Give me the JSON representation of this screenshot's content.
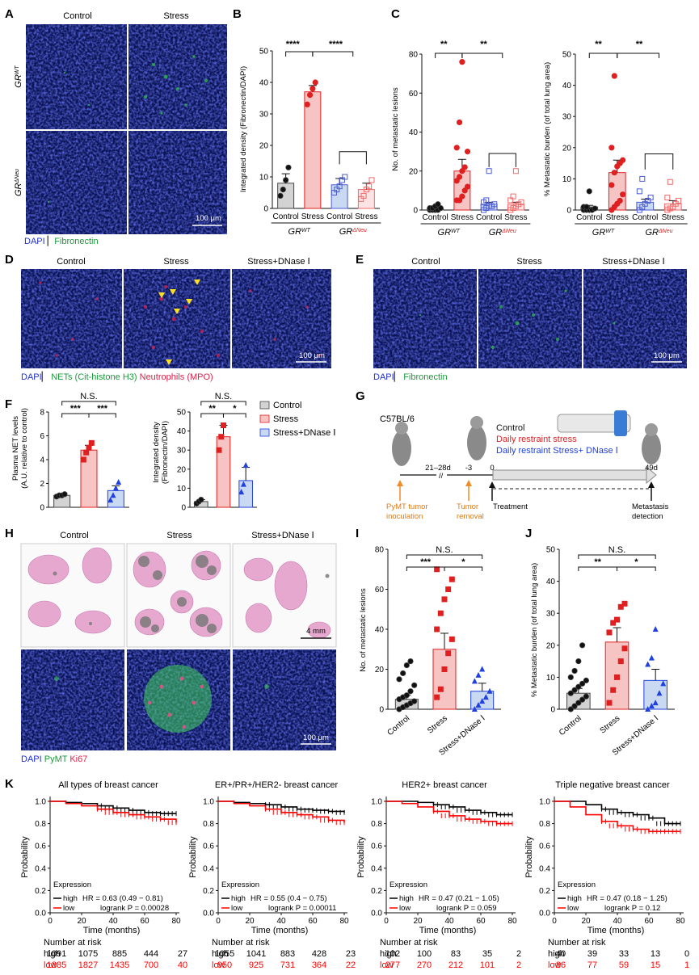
{
  "colors": {
    "control": "#444444",
    "stress": "#e02020",
    "dnase": "#2040e0",
    "control_fill": "#d3d3d3",
    "stress_fill": "#f7c4c4",
    "dnase_fill": "#c9d9f2",
    "gr_neu_control": "#4a5bd6",
    "gr_neu_stress": "#f06a6a",
    "km_high": "#000000",
    "km_low": "#ff0000",
    "micro_bg": "#0a0a3a",
    "he_bg": "#fafafa"
  },
  "panelA": {
    "letter": "A",
    "cols": [
      "Control",
      "Stress"
    ],
    "rows": [
      {
        "base": "GR",
        "sup": "WT"
      },
      {
        "base": "GR",
        "sup": "ΔNeu"
      }
    ],
    "scale": "100 μm",
    "legend_dapi": "DAPI",
    "legend_stain": "Fibronectin"
  },
  "panelB": {
    "letter": "B",
    "ylabel": "Integrated density (Fibronectin/DAPI)",
    "ylim": [
      0,
      50
    ],
    "yticks": [
      "0",
      "10",
      "20",
      "30",
      "40",
      "50"
    ],
    "xticks": [
      "Control",
      "Stress",
      "Control",
      "Stress"
    ],
    "groups": [
      {
        "base": "GR",
        "sup": "WT"
      },
      {
        "base": "GR",
        "sup": "ΔNeu"
      }
    ],
    "sig": [
      "****",
      "****"
    ]
  },
  "panelC": {
    "letter": "C",
    "sig": [
      "**",
      "**"
    ],
    "xticks": [
      "Control",
      "Stress",
      "Control",
      "Stress"
    ],
    "groups": [
      {
        "base": "GR",
        "sup": "WT"
      },
      {
        "base": "GR",
        "sup": "ΔNeu"
      }
    ],
    "left": {
      "ylabel": "No. of metastatic lesions",
      "yticks": [
        "0",
        "20",
        "40",
        "60",
        "80"
      ]
    },
    "right": {
      "ylabel": "% Metastatic burden (of total lung area)",
      "yticks": [
        "0",
        "10",
        "20",
        "30",
        "40",
        "50"
      ]
    }
  },
  "panelD": {
    "letter": "D",
    "cols": [
      "Control",
      "Stress",
      "Stress+DNase Ⅰ"
    ],
    "scale": "100 μm",
    "legend_dapi": "DAPI",
    "legend_nets": "NETs (Cit-histone H3)",
    "legend_neut": "Neutrophils (MPO)"
  },
  "panelE": {
    "letter": "E",
    "cols": [
      "Control",
      "Stress",
      "Stress+DNase Ⅰ"
    ],
    "scale": "100 μm",
    "legend_dapi": "DAPI",
    "legend_stain": "Fibronectin"
  },
  "panelF": {
    "letter": "F",
    "left": {
      "ylabel1": "Plasma NET levels",
      "ylabel2": "(A.U. relative to control)",
      "yticks": [
        "0",
        "2",
        "4",
        "6",
        "8"
      ],
      "sig_top": "N.S.",
      "sig": [
        "***",
        "***"
      ]
    },
    "right": {
      "ylabel1": "Integrated density",
      "ylabel2": "(Fibronectin/DAPI)",
      "yticks": [
        "0",
        "10",
        "20",
        "30",
        "40",
        "50"
      ],
      "sig_top": "N.S.",
      "sig": [
        "**",
        "*"
      ]
    },
    "legend": [
      "Control",
      "Stress",
      "Stress+DNase Ⅰ"
    ]
  },
  "panelG": {
    "letter": "G",
    "strain": "C57BL/6",
    "arms": [
      "Control",
      "Daily restraint stress",
      "Daily restraint Stress+ DNase Ⅰ"
    ],
    "timeline": [
      "21–28d",
      "-3",
      "0",
      "49d"
    ],
    "events": [
      "PyMT tumor",
      "inoculation",
      "Tumor",
      "removal",
      "Treatment",
      "Metastasis",
      "detection"
    ]
  },
  "panelH": {
    "letter": "H",
    "cols": [
      "Control",
      "Stress",
      "Stress+DNase Ⅰ"
    ],
    "scale_top": "4 mm",
    "scale_bottom": "100 μm",
    "legend_dapi": "DAPI",
    "legend_pymt": "PyMT",
    "legend_ki67": "Ki67"
  },
  "panelI": {
    "letter": "I",
    "ylabel": "No. of metastatic lesions",
    "yticks": [
      "0",
      "20",
      "40",
      "60",
      "80"
    ],
    "xticks": [
      "Control",
      "Stress",
      "Stress+DNase Ⅰ"
    ],
    "sig_top": "N.S.",
    "sig": [
      "***",
      "*"
    ]
  },
  "panelJ": {
    "letter": "J",
    "ylabel": "% Metastatic burden (of total lung area)",
    "yticks": [
      "0",
      "10",
      "20",
      "30",
      "40",
      "50"
    ],
    "xticks": [
      "Control",
      "Stress",
      "Stress+DNase Ⅰ"
    ],
    "sig_top": "N.S.",
    "sig": [
      "**",
      "*"
    ]
  },
  "panelK": {
    "letter": "K",
    "xlabel": "Time (months)",
    "ylabel": "Probability",
    "xticks": [
      "0",
      "20",
      "40",
      "60",
      "80"
    ],
    "yticks": [
      "0.0",
      "0.2",
      "0.4",
      "0.6",
      "0.8",
      "1.0"
    ],
    "risk_title": "Number at risk",
    "expression": "Expression",
    "high": "high",
    "low": "low",
    "plots": [
      {
        "title": "All types of breast cancer",
        "hr": "HR = 0.63 (0.49 − 0.81)",
        "p": "logrank P = 0.00028",
        "risk_high": [
          "1091",
          "1075",
          "885",
          "444",
          "27"
        ],
        "risk_low": [
          "1885",
          "1827",
          "1435",
          "700",
          "40"
        ]
      },
      {
        "title": "ER+/PR+/HER2- breast cancer",
        "hr": "HR = 0.55 (0.4 − 0.75)",
        "p": "logrank P = 0.00011",
        "risk_high": [
          "1055",
          "1041",
          "883",
          "428",
          "23"
        ],
        "risk_low": [
          "950",
          "925",
          "731",
          "364",
          "22"
        ]
      },
      {
        "title": "HER2+ breast cancer",
        "hr": "HR = 0.47 (0.21 − 1.05)",
        "p": "logrank P = 0.059",
        "risk_high": [
          "102",
          "100",
          "83",
          "35",
          "2"
        ],
        "risk_low": [
          "277",
          "270",
          "212",
          "101",
          "2"
        ]
      },
      {
        "title": "Triple negative breast cancer",
        "hr": "HR = 0.47 (0.18 − 1.25)",
        "p": "logrank P = 0.12",
        "risk_high": [
          "40",
          "39",
          "33",
          "13",
          "0"
        ],
        "risk_low": [
          "86",
          "77",
          "59",
          "15",
          "1"
        ]
      }
    ]
  },
  "chart_data": [
    {
      "type": "bar",
      "panel": "B",
      "categories": [
        "GRWT Control",
        "GRWT Stress",
        "GRΔNeu Control",
        "GRΔNeu Stress"
      ],
      "values": [
        8,
        37,
        7.5,
        6
      ],
      "errors": [
        3,
        2,
        2,
        2
      ],
      "points": [
        [
          4,
          6,
          9,
          13
        ],
        [
          33,
          36,
          38,
          40
        ],
        [
          5,
          6,
          7,
          9,
          10
        ],
        [
          3,
          4,
          6,
          7,
          9
        ]
      ],
      "ylim": [
        0,
        50
      ]
    },
    {
      "type": "bar",
      "panel": "C-left",
      "categories": [
        "GRWT Control",
        "GRWT Stress",
        "GRΔNeu Control",
        "GRΔNeu Stress"
      ],
      "values": [
        1,
        20,
        3,
        3
      ],
      "errors": [
        0.5,
        6,
        1,
        1
      ],
      "points": [
        [
          0,
          0,
          0,
          0,
          1,
          1,
          1,
          2,
          3
        ],
        [
          5,
          5,
          7,
          10,
          12,
          15,
          17,
          20,
          22,
          30,
          32,
          45,
          76
        ],
        [
          0,
          1,
          2,
          2,
          3,
          4,
          5,
          20
        ],
        [
          0,
          1,
          2,
          3,
          4,
          5,
          7,
          20
        ]
      ],
      "ylim": [
        0,
        80
      ]
    },
    {
      "type": "bar",
      "panel": "C-right",
      "categories": [
        "GRWT Control",
        "GRWT Stress",
        "GRΔNeu Control",
        "GRΔNeu Stress"
      ],
      "values": [
        1,
        12,
        2.5,
        2
      ],
      "errors": [
        0.5,
        4,
        1,
        1
      ],
      "points": [
        [
          0,
          0,
          0,
          0,
          0.5,
          1,
          1,
          6
        ],
        [
          0,
          1,
          2,
          3,
          5,
          8,
          12,
          14,
          15,
          16,
          20,
          43
        ],
        [
          0,
          1,
          2,
          3,
          4,
          6,
          10
        ],
        [
          0,
          0.5,
          1,
          2,
          3,
          4,
          9
        ]
      ],
      "ylim": [
        0,
        50
      ]
    },
    {
      "type": "bar",
      "panel": "F-left",
      "categories": [
        "Control",
        "Stress",
        "Stress+DNase Ⅰ"
      ],
      "values": [
        1.0,
        4.8,
        1.4
      ],
      "errors": [
        0.05,
        0.4,
        0.4
      ],
      "points": [
        [
          0.9,
          1.0,
          1.0,
          1.1
        ],
        [
          4.0,
          4.6,
          5.0,
          5.4
        ],
        [
          0.6,
          1.0,
          1.6,
          2.1
        ]
      ],
      "ylim": [
        0,
        8
      ]
    },
    {
      "type": "bar",
      "panel": "F-right",
      "categories": [
        "Control",
        "Stress",
        "Stress+DNase Ⅰ"
      ],
      "values": [
        3,
        37,
        14
      ],
      "errors": [
        1,
        6,
        7
      ],
      "points": [
        [
          2,
          3,
          4
        ],
        [
          30,
          37,
          43
        ],
        [
          8,
          12,
          22
        ]
      ],
      "ylim": [
        0,
        50
      ]
    },
    {
      "type": "bar",
      "panel": "I",
      "categories": [
        "Control",
        "Stress",
        "Stress+DNase Ⅰ"
      ],
      "values": [
        5,
        30,
        9
      ],
      "errors": [
        2,
        8,
        4
      ],
      "points": [
        [
          0,
          1,
          2,
          3,
          4,
          5,
          6,
          7,
          9,
          12,
          15,
          18,
          22,
          24
        ],
        [
          6,
          10,
          20,
          28,
          35,
          40,
          48,
          55,
          60,
          65,
          70
        ],
        [
          0,
          2,
          4,
          6,
          9,
          14,
          17,
          20
        ]
      ],
      "ylim": [
        0,
        80
      ]
    },
    {
      "type": "bar",
      "panel": "J",
      "categories": [
        "Control",
        "Stress",
        "Stress+DNase Ⅰ"
      ],
      "values": [
        5,
        21,
        9
      ],
      "errors": [
        1.5,
        4.5,
        3.5
      ],
      "points": [
        [
          0,
          1,
          2,
          3,
          4,
          5,
          6,
          7,
          8,
          9,
          10,
          12,
          15,
          20
        ],
        [
          2,
          6,
          10,
          15,
          19,
          24,
          27,
          28,
          32,
          33
        ],
        [
          0,
          1,
          2,
          5,
          8,
          14,
          16,
          25
        ]
      ],
      "ylim": [
        0,
        50
      ]
    },
    {
      "type": "line",
      "panel": "K-1",
      "x": [
        0,
        10,
        20,
        30,
        40,
        50,
        60,
        70,
        80
      ],
      "series": [
        {
          "name": "high",
          "values": [
            1.0,
            0.99,
            0.98,
            0.96,
            0.94,
            0.92,
            0.9,
            0.89,
            0.89
          ]
        },
        {
          "name": "low",
          "values": [
            1.0,
            0.98,
            0.96,
            0.93,
            0.9,
            0.88,
            0.86,
            0.84,
            0.81
          ]
        }
      ],
      "ylim": [
        0,
        1
      ]
    },
    {
      "type": "line",
      "panel": "K-2",
      "x": [
        0,
        10,
        20,
        30,
        40,
        50,
        60,
        70,
        80
      ],
      "series": [
        {
          "name": "high",
          "values": [
            1.0,
            0.99,
            0.98,
            0.97,
            0.95,
            0.93,
            0.92,
            0.91,
            0.9
          ]
        },
        {
          "name": "low",
          "values": [
            1.0,
            0.98,
            0.96,
            0.93,
            0.9,
            0.88,
            0.86,
            0.83,
            0.81
          ]
        }
      ],
      "ylim": [
        0,
        1
      ]
    },
    {
      "type": "line",
      "panel": "K-3",
      "x": [
        0,
        10,
        20,
        30,
        40,
        50,
        60,
        70,
        80
      ],
      "series": [
        {
          "name": "high",
          "values": [
            1.0,
            1.0,
            0.99,
            0.97,
            0.95,
            0.92,
            0.9,
            0.88,
            0.88
          ]
        },
        {
          "name": "low",
          "values": [
            1.0,
            0.98,
            0.95,
            0.91,
            0.87,
            0.84,
            0.82,
            0.8,
            0.8
          ]
        }
      ],
      "ylim": [
        0,
        1
      ]
    },
    {
      "type": "line",
      "panel": "K-4",
      "x": [
        0,
        10,
        20,
        30,
        40,
        50,
        60,
        70,
        80
      ],
      "series": [
        {
          "name": "high",
          "values": [
            1.0,
            1.0,
            0.97,
            0.93,
            0.9,
            0.88,
            0.85,
            0.8,
            0.8
          ]
        },
        {
          "name": "low",
          "values": [
            1.0,
            0.95,
            0.88,
            0.82,
            0.78,
            0.75,
            0.73,
            0.73,
            0.73
          ]
        }
      ],
      "ylim": [
        0,
        1
      ]
    }
  ]
}
